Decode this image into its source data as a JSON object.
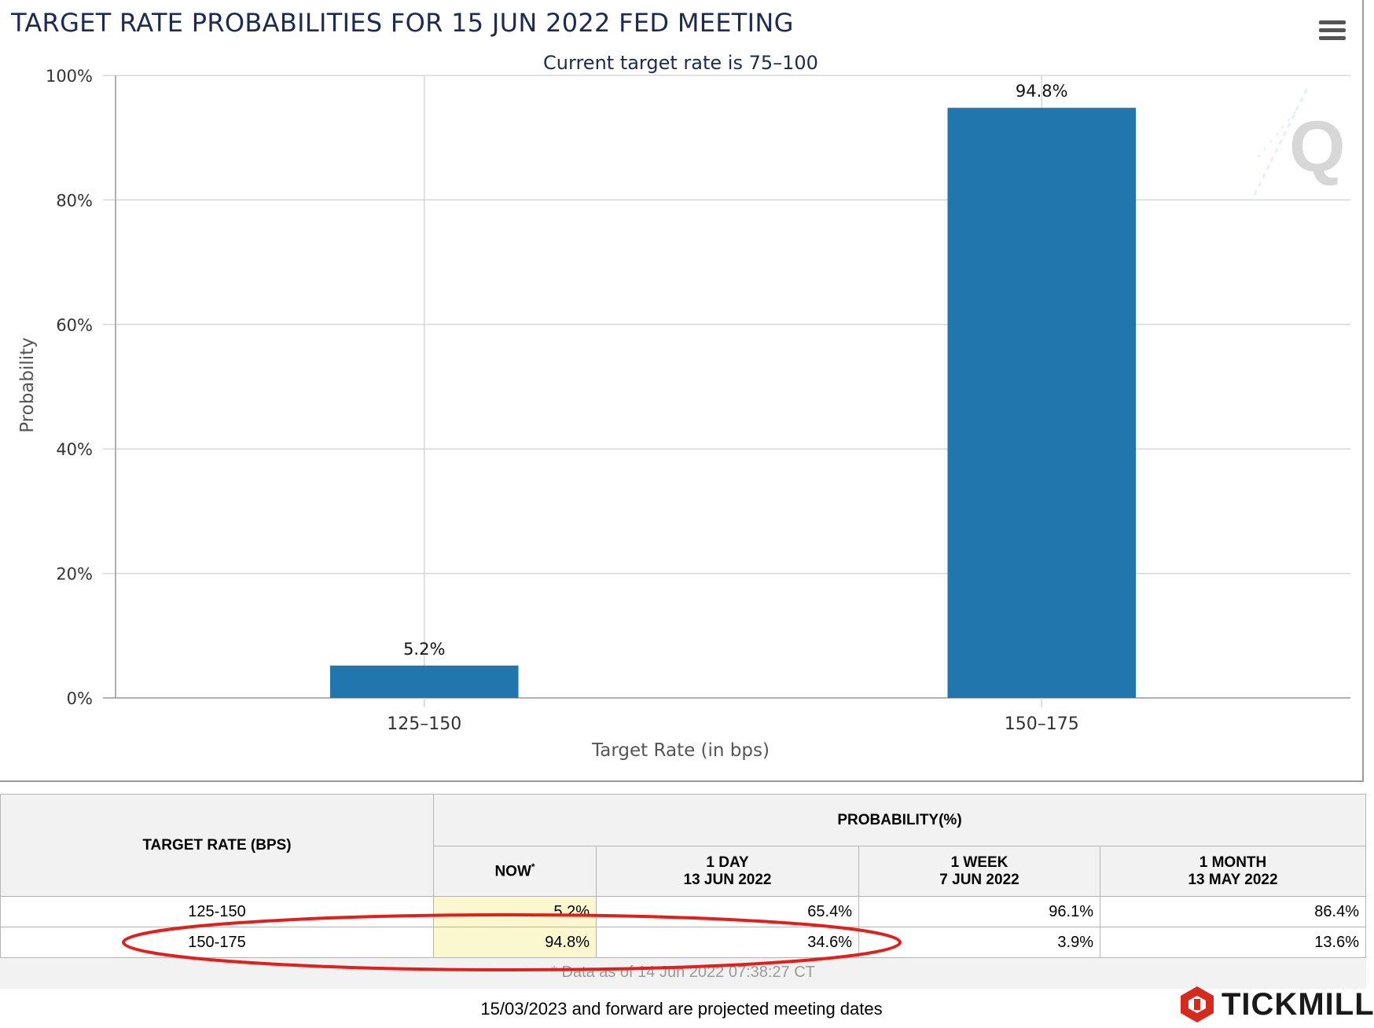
{
  "chart_data": {
    "type": "bar",
    "title": "TARGET RATE PROBABILITIES FOR 15 JUN 2022 FED MEETING",
    "subtitle": "Current target rate is 75–100",
    "categories": [
      "125–150",
      "150–175"
    ],
    "values": [
      5.2,
      94.8
    ],
    "data_labels": [
      "5.2%",
      "94.8%"
    ],
    "xlabel": "Target Rate (in bps)",
    "ylabel": "Probability",
    "ylim": [
      0,
      100
    ],
    "yticks": [
      0,
      20,
      40,
      60,
      80,
      100
    ],
    "ytick_labels": [
      "0%",
      "20%",
      "40%",
      "60%",
      "80%",
      "100%"
    ],
    "bar_color": "#2176ae",
    "grid": true
  },
  "watermark_letter": "Q",
  "table": {
    "header_rate": "TARGET RATE (BPS)",
    "header_prob": "PROBABILITY(%)",
    "columns": [
      {
        "line1": "NOW",
        "mark": "*",
        "line2": ""
      },
      {
        "line1": "1 DAY",
        "line2": "13 JUN 2022"
      },
      {
        "line1": "1 WEEK",
        "line2": "7 JUN 2022"
      },
      {
        "line1": "1 MONTH",
        "line2": "13 MAY 2022"
      }
    ],
    "rows": [
      {
        "rate": "125-150",
        "now": "5.2%",
        "day": "65.4%",
        "week": "96.1%",
        "month": "86.4%"
      },
      {
        "rate": "150-175",
        "now": "94.8%",
        "day": "34.6%",
        "week": "3.9%",
        "month": "13.6%"
      }
    ],
    "footnote": "* Data as of 14 Jun 2022 07:38:27 CT",
    "projected_note": "15/03/2023 and forward are projected meeting dates"
  },
  "brand": {
    "name": "TICKMILL",
    "color": "#d52b1e"
  },
  "highlight_color": "#e0201c"
}
